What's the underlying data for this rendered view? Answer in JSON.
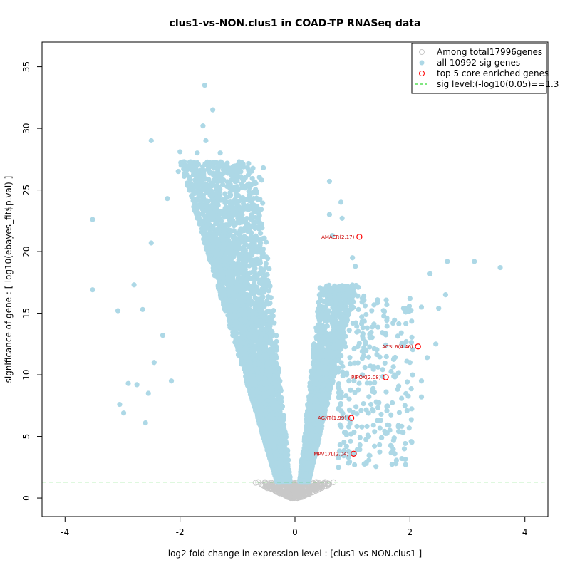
{
  "chart_data": {
    "type": "scatter",
    "title": "clus1-vs-NON.clus1 in COAD-TP RNASeq data",
    "xlabel": "log2 fold change in expression level : [clus1-vs-NON.clus1 ]",
    "ylabel": "significance of gene : [-log10(ebayes_fit$p.val) ]",
    "xlim": [
      -4.4,
      4.4
    ],
    "ylim": [
      -1.5,
      37
    ],
    "x_ticks": [
      -4,
      -2,
      0,
      2,
      4
    ],
    "y_ticks": [
      0,
      5,
      10,
      15,
      20,
      25,
      30,
      35
    ],
    "x_tick_labels": [
      "-4",
      "-2",
      "0",
      "2",
      "4"
    ],
    "y_tick_labels": [
      "0",
      "5",
      "10",
      "15",
      "20",
      "25",
      "30",
      "35"
    ],
    "sig_level": 1.3,
    "legend": {
      "position": "top-right",
      "entries": [
        {
          "label": "Among total17996genes",
          "kind": "open-circle",
          "color": "#c8c8c8"
        },
        {
          "label": "all 10992 sig genes",
          "kind": "filled-circle",
          "color": "#add8e6"
        },
        {
          "label": "top 5 core enriched genes",
          "kind": "open-circle",
          "color": "#ff0000"
        },
        {
          "label": "sig level:(-log10(0.05)==1.3",
          "kind": "dashed-line",
          "color": "#00cc00"
        }
      ]
    },
    "colors": {
      "all_genes": "#c8c8c8",
      "sig_genes": "#add8e6",
      "core_genes": "#ff0000",
      "core_labels": "#cc0000",
      "sig_line": "#00cc00"
    },
    "core_genes": [
      {
        "label": "AMACR(2.17)",
        "x": 1.12,
        "y": 21.2
      },
      {
        "label": "ACSL6(4.46)",
        "x": 2.14,
        "y": 12.3
      },
      {
        "label": "PIPOX(2.08)",
        "x": 1.58,
        "y": 9.8
      },
      {
        "label": "AGXT(1.99)",
        "x": 0.98,
        "y": 6.5
      },
      {
        "label": "MPV17L(2.04)",
        "x": 1.02,
        "y": 3.6
      }
    ],
    "sig_outliers": [
      {
        "x": -1.57,
        "y": 33.5
      },
      {
        "x": -1.43,
        "y": 31.5
      },
      {
        "x": -1.6,
        "y": 30.2
      },
      {
        "x": -2.5,
        "y": 29.0
      },
      {
        "x": -1.55,
        "y": 29.0
      },
      {
        "x": -1.7,
        "y": 28.0
      },
      {
        "x": -2.0,
        "y": 28.1
      },
      {
        "x": -1.3,
        "y": 28.0
      },
      {
        "x": -2.03,
        "y": 26.5
      },
      {
        "x": -0.55,
        "y": 26.8
      },
      {
        "x": -0.8,
        "y": 25.5
      },
      {
        "x": -3.52,
        "y": 22.6
      },
      {
        "x": -2.22,
        "y": 24.3
      },
      {
        "x": -2.5,
        "y": 20.7
      },
      {
        "x": -3.52,
        "y": 16.9
      },
      {
        "x": -3.08,
        "y": 15.2
      },
      {
        "x": -2.8,
        "y": 17.3
      },
      {
        "x": -2.65,
        "y": 15.3
      },
      {
        "x": -2.9,
        "y": 9.3
      },
      {
        "x": -2.75,
        "y": 9.2
      },
      {
        "x": -3.05,
        "y": 7.6
      },
      {
        "x": -2.98,
        "y": 6.9
      },
      {
        "x": -2.6,
        "y": 6.1
      },
      {
        "x": -2.55,
        "y": 8.5
      },
      {
        "x": -2.3,
        "y": 13.2
      },
      {
        "x": -2.45,
        "y": 11.0
      },
      {
        "x": -2.15,
        "y": 9.5
      },
      {
        "x": 0.6,
        "y": 25.7
      },
      {
        "x": 0.8,
        "y": 24.0
      },
      {
        "x": 0.6,
        "y": 23.0
      },
      {
        "x": 0.82,
        "y": 22.7
      },
      {
        "x": 0.65,
        "y": 21.3
      },
      {
        "x": 3.12,
        "y": 19.2
      },
      {
        "x": 3.57,
        "y": 18.7
      },
      {
        "x": 2.65,
        "y": 19.2
      },
      {
        "x": 2.35,
        "y": 18.2
      },
      {
        "x": 2.62,
        "y": 16.5
      },
      {
        "x": 2.5,
        "y": 15.4
      },
      {
        "x": 2.2,
        "y": 15.5
      },
      {
        "x": 2.0,
        "y": 16.2
      },
      {
        "x": 1.6,
        "y": 14.6
      },
      {
        "x": 1.85,
        "y": 13.4
      },
      {
        "x": 2.45,
        "y": 12.5
      },
      {
        "x": 2.3,
        "y": 11.4
      },
      {
        "x": 2.0,
        "y": 11.0
      },
      {
        "x": 2.2,
        "y": 9.5
      },
      {
        "x": 2.2,
        "y": 8.2
      },
      {
        "x": 1.95,
        "y": 7.1
      },
      {
        "x": 1.65,
        "y": 5.5
      },
      {
        "x": 1.5,
        "y": 6.8
      },
      {
        "x": 1.3,
        "y": 13.3
      },
      {
        "x": 1.0,
        "y": 19.5
      },
      {
        "x": 1.05,
        "y": 18.8
      },
      {
        "x": 1.1,
        "y": 17.1
      }
    ]
  }
}
